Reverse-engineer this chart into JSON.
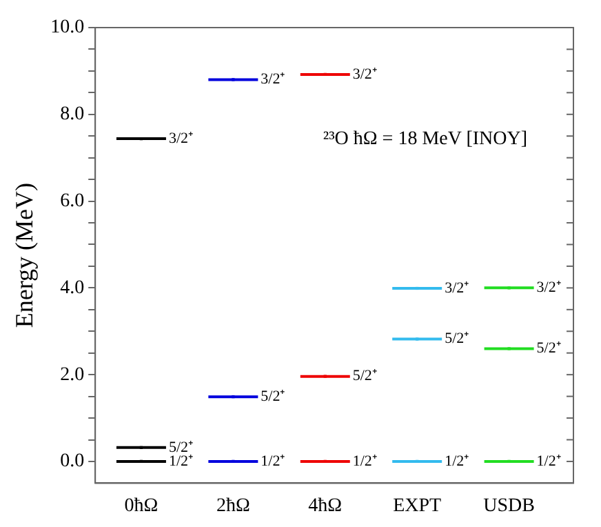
{
  "chart_data": {
    "type": "scatter",
    "ylabel": "Energy (MeV)",
    "marker": "square",
    "categories": [
      "0ħΩ",
      "2ħΩ",
      "4ħΩ",
      "EXPT",
      "USDB"
    ],
    "series": [
      {
        "colors": [
          "#000000",
          "#0000dd",
          "#ee0000",
          "#33bbee",
          "#22dd22"
        ],
        "values": [
          0,
          0,
          0,
          0,
          0
        ],
        "value_labels": [
          "1/2⁺",
          "1/2⁺",
          "1/2⁺",
          "1/2⁺",
          "1/2⁺"
        ]
      },
      {
        "colors": [
          "#000000",
          "#0000dd",
          "#ee0000",
          "#33bbee",
          "#22dd22"
        ],
        "values": [
          0.32,
          1.49,
          1.96,
          2.82,
          2.6
        ],
        "value_labels": [
          "5/2⁺",
          "5/2⁺",
          "5/2⁺",
          "5/2⁺",
          "5/2⁺"
        ]
      },
      {
        "colors": [
          "#000000",
          "#0000dd",
          "#ee0000",
          "#33bbee",
          "#22dd22"
        ],
        "values": [
          7.44,
          8.8,
          8.92,
          3.99,
          4.0
        ],
        "value_labels": [
          "3/2⁺",
          "3/2⁺",
          "3/2⁺",
          "3/2⁺",
          "3/2⁺"
        ]
      }
    ],
    "ylim": [
      -0.5,
      10
    ],
    "yticks": [
      {
        "value": 0,
        "label": "0.0"
      },
      {
        "value": 0.5,
        "label": null
      },
      {
        "value": 1,
        "label": null
      },
      {
        "value": 1.5,
        "label": null
      },
      {
        "value": 2,
        "label": "2.0"
      },
      {
        "value": 2.5,
        "label": null
      },
      {
        "value": 3,
        "label": null
      },
      {
        "value": 3.5,
        "label": null
      },
      {
        "value": 4,
        "label": "4.0"
      },
      {
        "value": 4.5,
        "label": null
      },
      {
        "value": 5,
        "label": null
      },
      {
        "value": 5.5,
        "label": null
      },
      {
        "value": 6,
        "label": "6.0"
      },
      {
        "value": 6.5,
        "label": null
      },
      {
        "value": 7,
        "label": null
      },
      {
        "value": 7.5,
        "label": null
      },
      {
        "value": 8,
        "label": "8.0"
      },
      {
        "value": 8.5,
        "label": null
      },
      {
        "value": 9,
        "label": null
      },
      {
        "value": 9.5,
        "label": null
      },
      {
        "value": 10,
        "label": "10.0"
      }
    ],
    "grid": false,
    "legend": false,
    "annotations": [
      "²³O ħΩ = 18 MeV [INOY]"
    ]
  }
}
